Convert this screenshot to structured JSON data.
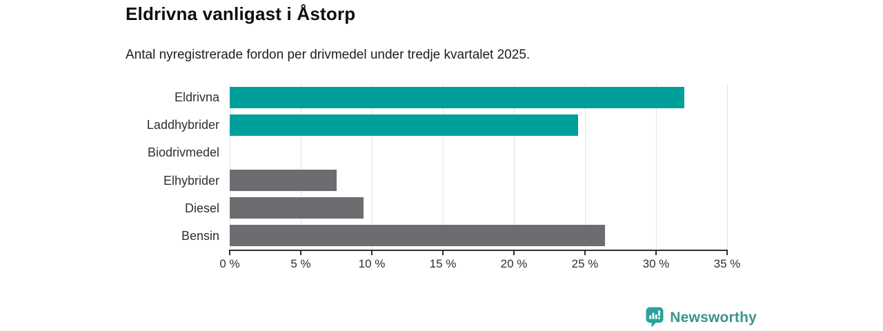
{
  "header": {
    "title": "Eldrivna vanligast i Åstorp",
    "subtitle": "Antal nyregistrerade fordon per drivmedel under tredje kvartalet 2025."
  },
  "chart_data": {
    "type": "bar",
    "orientation": "horizontal",
    "title": "Eldrivna vanligast i Åstorp",
    "subtitle": "Antal nyregistrerade fordon per drivmedel under tredje kvartalet 2025.",
    "categories": [
      "Eldrivna",
      "Laddhybrider",
      "Biodrivmedel",
      "Elhybrider",
      "Diesel",
      "Bensin"
    ],
    "values": [
      32,
      24.5,
      0,
      7.5,
      9.4,
      26.4
    ],
    "unit": "%",
    "xlim": [
      0,
      35
    ],
    "x_tick_values": [
      0,
      5,
      10,
      15,
      20,
      25,
      30,
      35
    ],
    "x_tick_labels": [
      "0 %",
      "5 %",
      "10 %",
      "15 %",
      "20 %",
      "25 %",
      "30 %",
      "35 %"
    ],
    "grid": true,
    "legend": "none",
    "bar_colors": [
      "#00a09a",
      "#00a09a",
      "#6d6d71",
      "#6d6d71",
      "#6d6d71",
      "#6d6d71"
    ],
    "highlight_color": "#00a09a",
    "default_color": "#6d6d71",
    "grid_color": "#e3e3e3",
    "axis_color": "#2e2e2e",
    "tick_label_color": "#2f2f2f",
    "category_label_color": "#2f2f2f"
  },
  "footer": {
    "brand": "Newsworthy",
    "brand_color": "#3a948e",
    "icon_color": "#2aa39a"
  }
}
